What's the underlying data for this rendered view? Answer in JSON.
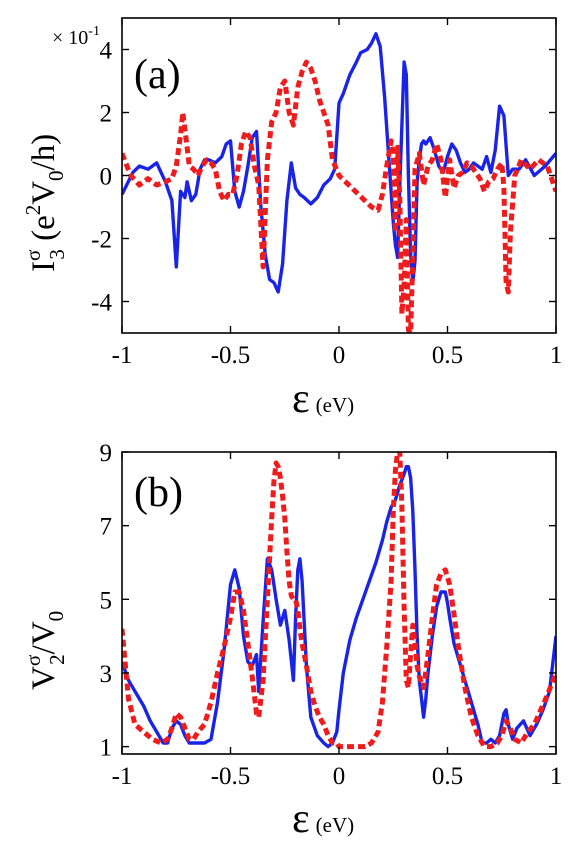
{
  "colors": {
    "solid": "#1a24e6",
    "dashed": "#ee1c1c"
  },
  "chart_data": [
    {
      "type": "line",
      "panel_label": "(a)",
      "xlabel": "ε",
      "xlabel_unit": "(eV)",
      "ylabel": "I3σ (e²V0/h)",
      "ylabel_parts": {
        "main": "I",
        "sup": "σ",
        "sub": "3",
        "paren_open": " (e",
        "paren_sup": "2",
        "paren_mid": "V",
        "paren_sub": "0",
        "paren_close": "/h)"
      },
      "y_multiplier": "× 10",
      "y_multiplier_exp": "-1",
      "xlim": [
        -1,
        1
      ],
      "ylim": [
        -5,
        5
      ],
      "xticks": [
        -1,
        -0.5,
        0,
        0.5,
        1
      ],
      "xtick_labels": [
        "-1",
        "-0.5",
        "0",
        "0.5",
        "1"
      ],
      "yticks": [
        -4,
        -2,
        0,
        2,
        4
      ],
      "ytick_labels": [
        "-4",
        "-2",
        "0",
        "2",
        "4"
      ],
      "series": [
        {
          "style": "solid",
          "x": [
            -1,
            -0.95,
            -0.92,
            -0.88,
            -0.84,
            -0.8,
            -0.77,
            -0.75,
            -0.73,
            -0.71,
            -0.7,
            -0.68,
            -0.66,
            -0.64,
            -0.62,
            -0.6,
            -0.57,
            -0.54,
            -0.52,
            -0.5,
            -0.48,
            -0.46,
            -0.44,
            -0.42,
            -0.4,
            -0.38,
            -0.36,
            -0.34,
            -0.32,
            -0.3,
            -0.28,
            -0.26,
            -0.24,
            -0.22,
            -0.2,
            -0.18,
            -0.16,
            -0.13,
            -0.1,
            -0.07,
            -0.04,
            -0.02,
            0,
            0.02,
            0.05,
            0.08,
            0.1,
            0.13,
            0.15,
            0.17,
            0.19,
            0.21,
            0.23,
            0.25,
            0.26,
            0.27,
            0.28,
            0.3,
            0.31,
            0.32,
            0.33,
            0.34,
            0.35,
            0.36,
            0.37,
            0.38,
            0.39,
            0.4,
            0.42,
            0.44,
            0.46,
            0.48,
            0.5,
            0.52,
            0.54,
            0.56,
            0.58,
            0.6,
            0.62,
            0.64,
            0.66,
            0.68,
            0.7,
            0.72,
            0.74,
            0.76,
            0.78,
            0.8,
            0.83,
            0.86,
            0.9,
            0.95,
            1
          ],
          "y": [
            -0.6,
            0.1,
            0.3,
            0.2,
            0.4,
            -0.2,
            -0.8,
            -2.9,
            -0.5,
            -0.7,
            -0.2,
            -0.8,
            -0.6,
            0.2,
            0.5,
            0.5,
            0.4,
            0.6,
            1.0,
            1.1,
            -0.5,
            -1.0,
            -0.5,
            0.3,
            1.2,
            1.4,
            -1.0,
            -2.5,
            -3.3,
            -3.4,
            -3.7,
            -2.8,
            -0.8,
            0.4,
            -0.4,
            -0.6,
            -0.7,
            -0.9,
            -0.7,
            -0.3,
            -0.1,
            0.2,
            2.3,
            2.6,
            3.2,
            3.6,
            3.9,
            4.0,
            4.2,
            4.5,
            4.1,
            2.5,
            0.5,
            -1.5,
            -2.2,
            -2.6,
            -0.3,
            3.6,
            3.2,
            0.0,
            -2.5,
            -3.4,
            -2.7,
            -0.2,
            0.5,
            1.0,
            1.1,
            1.0,
            1.2,
            0.8,
            0.3,
            0.1,
            0.6,
            1.0,
            0.8,
            0.4,
            0.1,
            0.2,
            0.4,
            0.3,
            0.2,
            0.6,
            0.1,
            0.8,
            2.2,
            1.9,
            0.0,
            0.2,
            0.2,
            0.5,
            0.0,
            0.3,
            0.7
          ]
        },
        {
          "style": "dashed",
          "x": [
            -1,
            -0.96,
            -0.92,
            -0.88,
            -0.84,
            -0.8,
            -0.77,
            -0.75,
            -0.73,
            -0.72,
            -0.7,
            -0.69,
            -0.67,
            -0.65,
            -0.63,
            -0.61,
            -0.59,
            -0.57,
            -0.55,
            -0.53,
            -0.51,
            -0.49,
            -0.47,
            -0.45,
            -0.43,
            -0.41,
            -0.39,
            -0.37,
            -0.35,
            -0.33,
            -0.31,
            -0.29,
            -0.27,
            -0.25,
            -0.23,
            -0.21,
            -0.19,
            -0.17,
            -0.15,
            -0.13,
            -0.11,
            -0.09,
            -0.07,
            -0.05,
            -0.03,
            0,
            0.03,
            0.06,
            0.09,
            0.12,
            0.15,
            0.18,
            0.2,
            0.22,
            0.24,
            0.25,
            0.26,
            0.27,
            0.28,
            0.29,
            0.3,
            0.31,
            0.32,
            0.33,
            0.34,
            0.35,
            0.37,
            0.39,
            0.41,
            0.43,
            0.45,
            0.47,
            0.49,
            0.51,
            0.53,
            0.55,
            0.57,
            0.59,
            0.61,
            0.63,
            0.65,
            0.67,
            0.69,
            0.71,
            0.73,
            0.75,
            0.76,
            0.77,
            0.78,
            0.79,
            0.81,
            0.84,
            0.88,
            0.92,
            0.96,
            1
          ],
          "y": [
            0.7,
            0.0,
            -0.3,
            -0.1,
            -0.3,
            -0.2,
            -0.1,
            0.3,
            1.3,
            2.0,
            0.9,
            0.3,
            0.2,
            0.0,
            0.3,
            0.5,
            0.4,
            0.2,
            -0.5,
            -0.8,
            -0.6,
            -0.6,
            0.0,
            1.0,
            1.4,
            1.2,
            0.3,
            -0.3,
            -2.9,
            0.5,
            1.7,
            2.0,
            2.8,
            3.0,
            2.0,
            1.6,
            2.8,
            3.3,
            3.6,
            3.4,
            3.0,
            2.4,
            2.0,
            1.6,
            0.5,
            0.0,
            -0.2,
            -0.4,
            -0.6,
            -0.8,
            -1.0,
            -1.1,
            -0.6,
            0.3,
            1.1,
            0.7,
            -1.8,
            0.9,
            -0.7,
            -4.4,
            -3.5,
            -1.4,
            -4.9,
            -5.0,
            -2.6,
            0.2,
            0.7,
            -0.3,
            0.3,
            0.5,
            1.0,
            0.5,
            -0.7,
            0.5,
            -0.4,
            0.0,
            0.1,
            0.4,
            0.3,
            0.1,
            -0.1,
            -0.5,
            -0.2,
            -0.1,
            0.2,
            0.4,
            -0.4,
            -3.4,
            -3.7,
            -1.8,
            0.0,
            0.5,
            0.2,
            0.5,
            0.3,
            -0.5
          ]
        }
      ]
    },
    {
      "type": "line",
      "panel_label": "(b)",
      "xlabel": "ε",
      "xlabel_unit": "(eV)",
      "ylabel": "V2σ/V0",
      "ylabel_parts": {
        "main": "V",
        "sup": "σ",
        "sub": "2",
        "tail": "/V",
        "tail_sub": "0"
      },
      "xlim": [
        -1,
        1
      ],
      "ylim": [
        0.8,
        9
      ],
      "xticks": [
        -1,
        -0.5,
        0,
        0.5,
        1
      ],
      "xtick_labels": [
        "-1",
        "-0.5",
        "0",
        "0.5",
        "1"
      ],
      "yticks": [
        1,
        3,
        5,
        7,
        9
      ],
      "ytick_labels": [
        "1",
        "3",
        "5",
        "7",
        "9"
      ],
      "series": [
        {
          "style": "solid",
          "x": [
            -1,
            -0.97,
            -0.94,
            -0.9,
            -0.87,
            -0.84,
            -0.81,
            -0.79,
            -0.77,
            -0.75,
            -0.73,
            -0.71,
            -0.69,
            -0.67,
            -0.65,
            -0.62,
            -0.59,
            -0.56,
            -0.53,
            -0.5,
            -0.48,
            -0.46,
            -0.44,
            -0.42,
            -0.4,
            -0.38,
            -0.37,
            -0.35,
            -0.33,
            -0.31,
            -0.29,
            -0.27,
            -0.25,
            -0.23,
            -0.21,
            -0.2,
            -0.19,
            -0.18,
            -0.17,
            -0.15,
            -0.13,
            -0.1,
            -0.07,
            -0.05,
            -0.03,
            -0.01,
            0.0,
            0.02,
            0.05,
            0.08,
            0.11,
            0.14,
            0.17,
            0.2,
            0.22,
            0.24,
            0.26,
            0.28,
            0.3,
            0.31,
            0.32,
            0.33,
            0.34,
            0.35,
            0.36,
            0.37,
            0.38,
            0.39,
            0.4,
            0.41,
            0.43,
            0.45,
            0.47,
            0.49,
            0.5,
            0.51,
            0.53,
            0.55,
            0.58,
            0.61,
            0.64,
            0.66,
            0.68,
            0.7,
            0.72,
            0.74,
            0.76,
            0.77,
            0.78,
            0.8,
            0.82,
            0.85,
            0.88,
            0.91,
            0.94,
            0.97,
            1
          ],
          "y": [
            3.3,
            2.8,
            2.5,
            2.1,
            1.7,
            1.4,
            1.1,
            1.1,
            1.5,
            1.7,
            1.6,
            1.3,
            1.1,
            1.1,
            1.1,
            1.1,
            1.2,
            2.2,
            3.6,
            5.4,
            5.8,
            5.3,
            4.0,
            3.3,
            3.2,
            3.5,
            2.5,
            4.4,
            6.1,
            5.8,
            5.0,
            4.3,
            4.7,
            3.9,
            2.8,
            4.5,
            5.8,
            6.1,
            5.5,
            3.2,
            1.8,
            1.3,
            1.1,
            1.0,
            1.1,
            1.4,
            2.0,
            3.0,
            3.9,
            4.5,
            5.0,
            5.5,
            6.0,
            6.6,
            7.1,
            7.5,
            7.7,
            8.1,
            8.4,
            8.6,
            8.6,
            8.3,
            7.4,
            5.8,
            4.0,
            2.8,
            2.3,
            1.8,
            2.3,
            3.0,
            4.0,
            4.8,
            5.2,
            5.2,
            4.9,
            4.5,
            3.8,
            3.4,
            2.8,
            2.2,
            1.6,
            1.1,
            1.1,
            1.2,
            1.1,
            1.3,
            1.9,
            2.0,
            1.6,
            1.2,
            1.5,
            1.7,
            1.3,
            1.6,
            2.0,
            2.5,
            4.0
          ]
        },
        {
          "style": "dashed",
          "x": [
            -1,
            -0.97,
            -0.94,
            -0.9,
            -0.86,
            -0.82,
            -0.79,
            -0.77,
            -0.75,
            -0.73,
            -0.71,
            -0.69,
            -0.67,
            -0.65,
            -0.62,
            -0.59,
            -0.56,
            -0.53,
            -0.5,
            -0.48,
            -0.46,
            -0.44,
            -0.42,
            -0.4,
            -0.38,
            -0.37,
            -0.35,
            -0.33,
            -0.31,
            -0.3,
            -0.29,
            -0.28,
            -0.27,
            -0.26,
            -0.25,
            -0.24,
            -0.23,
            -0.22,
            -0.21,
            -0.2,
            -0.19,
            -0.18,
            -0.17,
            -0.15,
            -0.13,
            -0.11,
            -0.09,
            -0.07,
            -0.05,
            -0.03,
            -0.01,
            0.0,
            0.03,
            0.06,
            0.09,
            0.12,
            0.15,
            0.18,
            0.2,
            0.22,
            0.24,
            0.25,
            0.26,
            0.27,
            0.28,
            0.29,
            0.3,
            0.31,
            0.32,
            0.33,
            0.34,
            0.35,
            0.36,
            0.37,
            0.39,
            0.41,
            0.43,
            0.45,
            0.47,
            0.49,
            0.51,
            0.53,
            0.55,
            0.58,
            0.61,
            0.64,
            0.67,
            0.7,
            0.73,
            0.75,
            0.77,
            0.79,
            0.81,
            0.84,
            0.87,
            0.9,
            0.93,
            0.96,
            1
          ],
          "y": [
            4.2,
            2.3,
            1.6,
            1.4,
            1.2,
            1.1,
            1.2,
            1.5,
            1.9,
            1.8,
            1.5,
            1.2,
            1.2,
            1.4,
            1.6,
            2.2,
            3.0,
            3.7,
            4.5,
            5.2,
            5.2,
            4.7,
            3.8,
            2.9,
            1.9,
            1.8,
            2.8,
            5.0,
            7.2,
            8.2,
            8.7,
            8.6,
            8.3,
            7.8,
            7.2,
            6.3,
            5.5,
            5.1,
            5.0,
            5.0,
            4.7,
            4.2,
            3.8,
            3.2,
            2.5,
            2.1,
            1.8,
            1.6,
            1.3,
            1.1,
            1.1,
            1.0,
            1.0,
            1.0,
            1.0,
            1.0,
            1.1,
            1.4,
            2.2,
            3.7,
            5.5,
            7.4,
            8.5,
            9.0,
            9.0,
            7.5,
            4.8,
            2.8,
            2.6,
            3.5,
            4.3,
            3.8,
            3.2,
            2.9,
            2.6,
            3.5,
            4.5,
            5.4,
            5.7,
            5.8,
            5.4,
            4.6,
            3.7,
            2.6,
            1.8,
            1.3,
            1.0,
            1.0,
            1.1,
            1.3,
            1.7,
            1.5,
            1.2,
            1.1,
            1.4,
            1.6,
            2.0,
            2.4,
            3.0
          ]
        }
      ]
    }
  ]
}
